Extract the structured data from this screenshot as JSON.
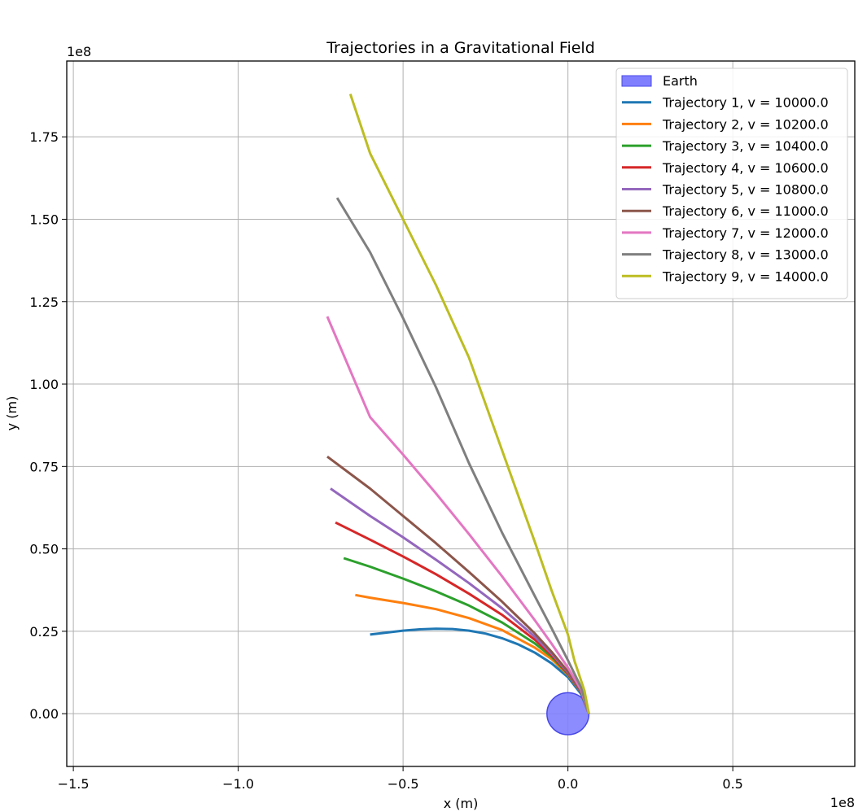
{
  "chart_data": {
    "type": "line",
    "title": "Trajectories in a Gravitational Field",
    "xlabel": "x (m)",
    "ylabel": "y (m)",
    "x_offset_label": "1e8",
    "y_offset_label": "1e8",
    "xlim": [
      -1.52,
      0.87
    ],
    "ylim": [
      -0.16,
      1.98
    ],
    "x_ticks": [
      -1.5,
      -1.0,
      -0.5,
      0.0,
      0.5
    ],
    "x_tick_labels": [
      "−1.5",
      "−1.0",
      "−0.5",
      "0.0",
      "0.5"
    ],
    "y_ticks": [
      0.0,
      0.25,
      0.5,
      0.75,
      1.0,
      1.25,
      1.5,
      1.75
    ],
    "y_tick_labels": [
      "0.00",
      "0.25",
      "0.50",
      "0.75",
      "1.00",
      "1.25",
      "1.50",
      "1.75"
    ],
    "grid": true,
    "legend_position": "top-right",
    "earth": {
      "label": "Earth",
      "center": [
        0.0,
        0.0
      ],
      "radius": 0.0637,
      "color": "#8080ff",
      "edge_color": "#4848e8"
    },
    "series": [
      {
        "name": "Trajectory 1, v = 10000.0",
        "color": "#1f77b4",
        "x": [
          0.0637,
          0.04,
          0.0,
          -0.05,
          -0.1,
          -0.15,
          -0.2,
          -0.25,
          -0.3,
          -0.35,
          -0.4,
          -0.45,
          -0.5,
          -0.55,
          -0.6
        ],
        "y": [
          0.0,
          0.06,
          0.111,
          0.153,
          0.185,
          0.21,
          0.229,
          0.243,
          0.252,
          0.257,
          0.258,
          0.256,
          0.252,
          0.246,
          0.24
        ]
      },
      {
        "name": "Trajectory 2, v = 10200.0",
        "color": "#ff7f0e",
        "x": [
          0.0637,
          0.04,
          0.0,
          -0.05,
          -0.1,
          -0.2,
          -0.3,
          -0.4,
          -0.5,
          -0.6,
          -0.645
        ],
        "y": [
          0.0,
          0.065,
          0.118,
          0.166,
          0.2,
          0.254,
          0.29,
          0.317,
          0.336,
          0.352,
          0.36
        ]
      },
      {
        "name": "Trajectory 3, v = 10400.0",
        "color": "#2ca02c",
        "x": [
          0.0637,
          0.04,
          0.0,
          -0.05,
          -0.1,
          -0.2,
          -0.3,
          -0.4,
          -0.5,
          -0.6,
          -0.68
        ],
        "y": [
          0.0,
          0.065,
          0.12,
          0.173,
          0.213,
          0.277,
          0.328,
          0.371,
          0.41,
          0.446,
          0.472
        ]
      },
      {
        "name": "Trajectory 4, v = 10600.0",
        "color": "#d62728",
        "x": [
          0.0637,
          0.04,
          0.0,
          -0.05,
          -0.1,
          -0.2,
          -0.3,
          -0.4,
          -0.5,
          -0.6,
          -0.705
        ],
        "y": [
          0.0,
          0.066,
          0.122,
          0.178,
          0.224,
          0.3,
          0.364,
          0.423,
          0.477,
          0.528,
          0.58
        ]
      },
      {
        "name": "Trajectory 5, v = 10800.0",
        "color": "#9467bd",
        "x": [
          0.0637,
          0.04,
          0.0,
          -0.05,
          -0.1,
          -0.2,
          -0.3,
          -0.4,
          -0.5,
          -0.6,
          -0.72
        ],
        "y": [
          0.0,
          0.067,
          0.125,
          0.183,
          0.233,
          0.32,
          0.396,
          0.467,
          0.535,
          0.6,
          0.683
        ]
      },
      {
        "name": "Trajectory 6, v = 11000.0",
        "color": "#8c564b",
        "x": [
          0.0637,
          0.04,
          0.0,
          -0.05,
          -0.1,
          -0.2,
          -0.3,
          -0.4,
          -0.5,
          -0.6,
          -0.73
        ],
        "y": [
          0.0,
          0.068,
          0.128,
          0.188,
          0.243,
          0.34,
          0.43,
          0.517,
          0.6,
          0.683,
          0.78
        ]
      },
      {
        "name": "Trajectory 7, v = 12000.0",
        "color": "#e377c2",
        "x": [
          0.0637,
          0.04,
          0.0,
          -0.05,
          -0.1,
          -0.2,
          -0.3,
          -0.4,
          -0.5,
          -0.6,
          -0.73
        ],
        "y": [
          0.0,
          0.072,
          0.14,
          0.213,
          0.283,
          0.417,
          0.545,
          0.668,
          0.786,
          0.9,
          1.205
        ]
      },
      {
        "name": "Trajectory 8, v = 13000.0",
        "color": "#7f7f7f",
        "x": [
          0.0637,
          0.04,
          0.0,
          -0.05,
          -0.1,
          -0.2,
          -0.3,
          -0.4,
          -0.5,
          -0.6,
          -0.7
        ],
        "y": [
          0.0,
          0.08,
          0.162,
          0.26,
          0.356,
          0.55,
          0.76,
          0.99,
          1.2,
          1.4,
          1.565
        ]
      },
      {
        "name": "Trajectory 9, v = 14000.0",
        "color": "#bcbd22",
        "x": [
          0.0637,
          0.05,
          0.02,
          0.0,
          -0.05,
          -0.1,
          -0.2,
          -0.3,
          -0.4,
          -0.5,
          -0.6,
          -0.66
        ],
        "y": [
          0.0,
          0.07,
          0.16,
          0.24,
          0.375,
          0.52,
          0.8,
          1.08,
          1.3,
          1.5,
          1.7,
          1.88
        ]
      }
    ]
  }
}
